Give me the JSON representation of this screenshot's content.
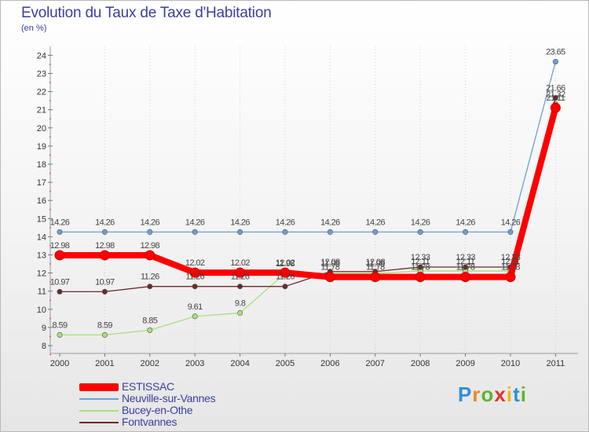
{
  "chart_data": {
    "type": "line",
    "title": "Evolution du Taux de Taxe d'Habitation",
    "subtitle": "(en %)",
    "xlabel": "",
    "ylabel": "(en %)",
    "ylim": [
      8,
      24.5
    ],
    "yticks": [
      "8",
      "9",
      "10",
      "11",
      "12",
      "13",
      "14",
      "15",
      "16",
      "17",
      "18",
      "19",
      "20",
      "21",
      "22",
      "23",
      "24"
    ],
    "categories": [
      "2000",
      "2001",
      "2002",
      "2003",
      "2004",
      "2005",
      "2006",
      "2007",
      "2008",
      "2009",
      "2010",
      "2011"
    ],
    "series": [
      {
        "name": "ESTISSAC",
        "color": "#ff0000",
        "values": [
          12.98,
          12.98,
          12.98,
          12.02,
          12.02,
          12.02,
          11.78,
          11.78,
          11.78,
          11.78,
          11.78,
          21.11
        ],
        "labels": [
          "12.98",
          "12.98",
          "12.98",
          "12.02",
          "12.02",
          "12.02",
          "11.78",
          "11.78",
          "11.78",
          "11.78",
          "11.78",
          "21.11"
        ]
      },
      {
        "name": "Neuville-sur-Vannes",
        "color": "#6e9fd0",
        "values": [
          14.26,
          14.26,
          14.26,
          14.26,
          14.26,
          14.26,
          14.26,
          14.26,
          14.26,
          14.26,
          14.26,
          23.65
        ],
        "labels": [
          "14.26",
          "14.26",
          "14.26",
          "14.26",
          "14.26",
          "14.26",
          "14.26",
          "14.26",
          "14.26",
          "14.26",
          "14.26",
          "23.65"
        ]
      },
      {
        "name": "Bucey-en-Othe",
        "color": "#a7e07d",
        "values": [
          8.59,
          8.59,
          8.85,
          9.61,
          9.8,
          11.98,
          11.98,
          11.98,
          12.11,
          12.11,
          12.11,
          21.32
        ],
        "labels": [
          "8.59",
          "8.59",
          "8.85",
          "9.61",
          "9.8",
          "11.98",
          "11.98",
          "11.98",
          "12.11",
          "12.11",
          "12.11",
          "21.32"
        ]
      },
      {
        "name": "Fontvannes",
        "color": "#6b2a2a",
        "values": [
          10.97,
          10.97,
          11.26,
          11.26,
          11.26,
          11.26,
          12.08,
          12.08,
          12.33,
          12.33,
          12.33,
          21.66
        ],
        "labels": [
          "10.97",
          "10.97",
          "11.26",
          "11.26",
          "11.26",
          "11.26",
          "12.08",
          "12.08",
          "12.33",
          "12.33",
          "12.33",
          "21.66"
        ]
      }
    ]
  },
  "legend": [
    "ESTISSAC",
    "Neuville-sur-Vannes",
    "Bucey-en-Othe",
    "Fontvannes"
  ],
  "logo": {
    "text": "Proxiti",
    "letters": [
      "P",
      "r",
      "o",
      "x",
      "i",
      "t",
      "i"
    ],
    "colors": [
      "#2f8fd8",
      "#e98a1b",
      "#5cb531",
      "#e4322b",
      "#f2b619",
      "#2f8fd8",
      "#5cb531"
    ]
  }
}
